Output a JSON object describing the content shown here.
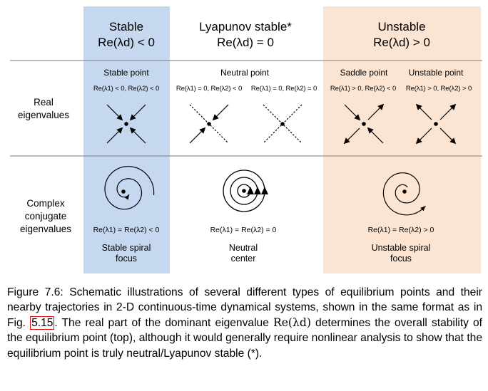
{
  "columns": {
    "stable": {
      "title": "Stable",
      "criterion": "Re(λd) < 0"
    },
    "lyapunov": {
      "title": "Lyapunov stable*",
      "criterion": "Re(λd) = 0"
    },
    "unstable": {
      "title": "Unstable",
      "criterion": "Re(λd) > 0"
    }
  },
  "rows": {
    "real": "Real\neigenvalues",
    "complex": "Complex\nconjugate\neigenvalues"
  },
  "real_cases": {
    "stable_point": {
      "label": "Stable point",
      "condition": "Re(λ1) < 0, Re(λ2) < 0"
    },
    "neutral_point": {
      "label": "Neutral point",
      "condition_a": "Re(λ1) = 0, Re(λ2) < 0",
      "condition_b": "Re(λ1) = 0, Re(λ2) = 0"
    },
    "saddle_point": {
      "label": "Saddle point",
      "condition": "Re(λ1) > 0, Re(λ2) < 0"
    },
    "unstable_point": {
      "label": "Unstable point",
      "condition": "Re(λ1) > 0, Re(λ2) > 0"
    }
  },
  "complex_cases": {
    "stable_spiral": {
      "condition": "Re(λ1) = Re(λ2) < 0",
      "label": "Stable spiral\nfocus"
    },
    "neutral_center": {
      "condition": "Re(λ1) = Re(λ2) = 0",
      "label": "Neutral\ncenter"
    },
    "unstable_spiral": {
      "condition": "Re(λ1) = Re(λ2) > 0",
      "label": "Unstable spiral\nfocus"
    }
  },
  "caption": {
    "before_ref": "Figure 7.6: Schematic illustrations of several different types of equilibrium points and their nearby trajectories in 2-D continuous-time dynamical systems, shown in the same format as in Fig. ",
    "ref": "5.15",
    "mid": ". The real part of the dominant eigenvalue ",
    "math": "Re(λd)",
    "after": " determines the overall stability of the equilibrium point (top), although it would generally require nonlinear analysis to show that the equilibrium point is truly neutral/Lyapunov stable (*)."
  },
  "colors": {
    "stable_bg": "#c5d8f0",
    "unstable_bg": "#fce4d2",
    "rule": "#7a7a7a",
    "ref_box": "#e01010"
  }
}
